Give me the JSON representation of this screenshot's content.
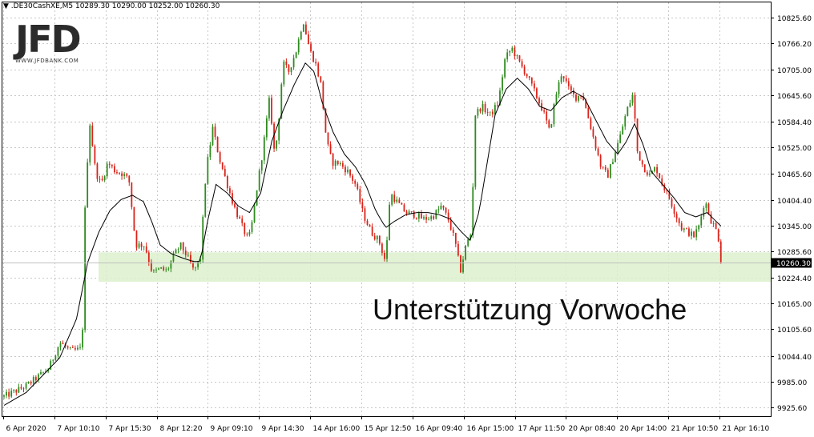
{
  "header": {
    "symbol_line": "▼  .DE30CashXE,M5  10289.30 10290.00 10252.00 10260.30"
  },
  "logo": {
    "name": "JFD",
    "tagline": "WWW.JFDBANK.COM"
  },
  "annotation": {
    "text": "Unterstützung Vorwoche"
  },
  "colors": {
    "bull": "#2e8b1f",
    "bear": "#d9231a",
    "moving_average": "#000000",
    "support_zone": "#ddf0cc",
    "current_price_tag": "#000000",
    "grid": "#c8c8c8"
  },
  "chart_data": {
    "type": "candlestick",
    "title": "",
    "instrument": ".DE30CashXE",
    "timeframe": "M5",
    "last_bar": {
      "open": 10289.3,
      "high": 10290.0,
      "low": 10252.0,
      "close": 10260.3
    },
    "current_price": 10260.3,
    "current_price_label": "10260.30",
    "ylim": [
      9905,
      10860
    ],
    "y_ticks": [
      {
        "value": 10825.6,
        "label": "10825.60"
      },
      {
        "value": 10766.2,
        "label": "10766.20"
      },
      {
        "value": 10705.0,
        "label": "10705.00"
      },
      {
        "value": 10645.6,
        "label": "10645.60"
      },
      {
        "value": 10584.4,
        "label": "10584.40"
      },
      {
        "value": 10525.0,
        "label": "10525.00"
      },
      {
        "value": 10465.6,
        "label": "10465.60"
      },
      {
        "value": 10404.4,
        "label": "10404.40"
      },
      {
        "value": 10345.0,
        "label": "10345.00"
      },
      {
        "value": 10285.6,
        "label": "10285.60"
      },
      {
        "value": 10224.4,
        "label": "10224.40"
      },
      {
        "value": 10165.0,
        "label": "10165.00"
      },
      {
        "value": 10105.6,
        "label": "10105.60"
      },
      {
        "value": 10044.4,
        "label": "10044.40"
      },
      {
        "value": 9985.0,
        "label": "9985.00"
      },
      {
        "value": 9925.6,
        "label": "9925.60"
      }
    ],
    "x_ticks": [
      "6 Apr 2020",
      "7 Apr 10:10",
      "7 Apr 15:30",
      "8 Apr 12:20",
      "9 Apr 09:10",
      "9 Apr 14:30",
      "14 Apr 16:00",
      "15 Apr 12:50",
      "16 Apr 09:40",
      "16 Apr 15:00",
      "17 Apr 11:50",
      "20 Apr 08:40",
      "20 Apr 14:00",
      "21 Apr 10:50",
      "21 Apr 16:10"
    ],
    "support_zone": {
      "low": 10215,
      "high": 10283
    },
    "price_path": [
      [
        0,
        9950
      ],
      [
        2,
        9975
      ],
      [
        4,
        10015
      ],
      [
        5,
        10075
      ],
      [
        6,
        10055
      ],
      [
        7,
        10060
      ],
      [
        7.3,
        10430
      ],
      [
        7.7,
        10580
      ],
      [
        8.2,
        10470
      ],
      [
        8.7,
        10440
      ],
      [
        9.3,
        10490
      ],
      [
        10,
        10470
      ],
      [
        10.6,
        10465
      ],
      [
        11.2,
        10450
      ],
      [
        11.8,
        10300
      ],
      [
        12.6,
        10300
      ],
      [
        13.3,
        10235
      ],
      [
        14,
        10245
      ],
      [
        14.6,
        10240
      ],
      [
        15.2,
        10275
      ],
      [
        15.8,
        10300
      ],
      [
        16.4,
        10275
      ],
      [
        17,
        10240
      ],
      [
        17.6,
        10270
      ],
      [
        18.1,
        10470
      ],
      [
        18.7,
        10570
      ],
      [
        19.3,
        10500
      ],
      [
        20,
        10440
      ],
      [
        20.6,
        10390
      ],
      [
        21.3,
        10345
      ],
      [
        21.9,
        10310
      ],
      [
        22.3,
        10360
      ],
      [
        22.6,
        10420
      ],
      [
        23.2,
        10520
      ],
      [
        23.8,
        10640
      ],
      [
        24.2,
        10520
      ],
      [
        24.5,
        10550
      ],
      [
        25,
        10720
      ],
      [
        25.5,
        10700
      ],
      [
        26.2,
        10750
      ],
      [
        26.8,
        10820
      ],
      [
        27.4,
        10750
      ],
      [
        27.9,
        10720
      ],
      [
        28.4,
        10670
      ],
      [
        28.9,
        10540
      ],
      [
        29.4,
        10490
      ],
      [
        30,
        10490
      ],
      [
        30.8,
        10470
      ],
      [
        31.5,
        10440
      ],
      [
        32.2,
        10370
      ],
      [
        32.9,
        10330
      ],
      [
        33.6,
        10310
      ],
      [
        34.2,
        10260
      ],
      [
        34.6,
        10420
      ],
      [
        35.2,
        10400
      ],
      [
        36,
        10375
      ],
      [
        36.8,
        10370
      ],
      [
        37.6,
        10360
      ],
      [
        38.4,
        10365
      ],
      [
        39.2,
        10390
      ],
      [
        39.8,
        10360
      ],
      [
        40.4,
        10310
      ],
      [
        40.9,
        10240
      ],
      [
        41.4,
        10300
      ],
      [
        41.9,
        10330
      ],
      [
        42.2,
        10600
      ],
      [
        42.8,
        10620
      ],
      [
        43.6,
        10600
      ],
      [
        44.3,
        10630
      ],
      [
        44.9,
        10730
      ],
      [
        45.5,
        10755
      ],
      [
        46.2,
        10720
      ],
      [
        46.9,
        10690
      ],
      [
        47.6,
        10650
      ],
      [
        48.3,
        10610
      ],
      [
        48.9,
        10560
      ],
      [
        49.4,
        10640
      ],
      [
        50,
        10700
      ],
      [
        50.6,
        10660
      ],
      [
        51.2,
        10640
      ],
      [
        51.8,
        10650
      ],
      [
        52.4,
        10590
      ],
      [
        52.9,
        10540
      ],
      [
        53.5,
        10480
      ],
      [
        54.1,
        10460
      ],
      [
        54.7,
        10510
      ],
      [
        55.2,
        10550
      ],
      [
        55.8,
        10610
      ],
      [
        56.4,
        10650
      ],
      [
        56.7,
        10520
      ],
      [
        57.3,
        10480
      ],
      [
        57.9,
        10460
      ],
      [
        58.4,
        10480
      ],
      [
        59,
        10440
      ],
      [
        59.6,
        10410
      ],
      [
        60.2,
        10370
      ],
      [
        60.7,
        10340
      ],
      [
        61.3,
        10330
      ],
      [
        61.8,
        10320
      ],
      [
        62.3,
        10345
      ],
      [
        62.8,
        10405
      ],
      [
        63.3,
        10360
      ],
      [
        63.9,
        10330
      ],
      [
        64.4,
        10265
      ]
    ],
    "ma_path": [
      [
        0,
        9930
      ],
      [
        2,
        9960
      ],
      [
        3.5,
        10000
      ],
      [
        5,
        10040
      ],
      [
        6.5,
        10130
      ],
      [
        7.5,
        10260
      ],
      [
        8.5,
        10330
      ],
      [
        9.5,
        10380
      ],
      [
        10.5,
        10405
      ],
      [
        11.5,
        10415
      ],
      [
        12.5,
        10400
      ],
      [
        13.3,
        10350
      ],
      [
        14,
        10300
      ],
      [
        15,
        10280
      ],
      [
        16,
        10270
      ],
      [
        17,
        10262
      ],
      [
        17.6,
        10262
      ],
      [
        18.2,
        10350
      ],
      [
        19,
        10440
      ],
      [
        20,
        10420
      ],
      [
        21,
        10390
      ],
      [
        22,
        10375
      ],
      [
        23,
        10420
      ],
      [
        24,
        10540
      ],
      [
        25,
        10610
      ],
      [
        26,
        10670
      ],
      [
        27,
        10720
      ],
      [
        27.8,
        10700
      ],
      [
        28.5,
        10630
      ],
      [
        29.5,
        10560
      ],
      [
        30.5,
        10510
      ],
      [
        31.5,
        10480
      ],
      [
        32.4,
        10440
      ],
      [
        33.3,
        10380
      ],
      [
        34.2,
        10340
      ],
      [
        35,
        10355
      ],
      [
        36,
        10370
      ],
      [
        37,
        10375
      ],
      [
        38,
        10375
      ],
      [
        39,
        10370
      ],
      [
        40,
        10360
      ],
      [
        41,
        10330
      ],
      [
        41.8,
        10310
      ],
      [
        42.6,
        10380
      ],
      [
        43.3,
        10490
      ],
      [
        44,
        10600
      ],
      [
        45,
        10660
      ],
      [
        46,
        10685
      ],
      [
        47,
        10660
      ],
      [
        48,
        10620
      ],
      [
        49,
        10610
      ],
      [
        50,
        10640
      ],
      [
        51,
        10655
      ],
      [
        52,
        10640
      ],
      [
        53,
        10590
      ],
      [
        54,
        10540
      ],
      [
        55,
        10510
      ],
      [
        55.8,
        10540
      ],
      [
        56.5,
        10580
      ],
      [
        57.3,
        10530
      ],
      [
        58,
        10470
      ],
      [
        59,
        10440
      ],
      [
        60,
        10410
      ],
      [
        61,
        10375
      ],
      [
        62,
        10365
      ],
      [
        63,
        10375
      ],
      [
        64.4,
        10340
      ]
    ],
    "series": [
      {
        "type": "candles"
      },
      {
        "type": "moving_average"
      }
    ],
    "grid": true,
    "legend": "none"
  }
}
